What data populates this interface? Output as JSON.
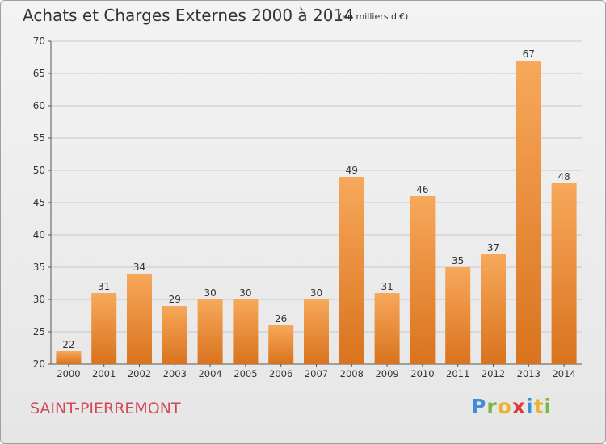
{
  "header": {
    "title": "Achats et Charges Externes 2000 à 2014",
    "subtitle": "(en milliers d'€)"
  },
  "footer": {
    "commune": "SAINT-PIERREMONT",
    "logo_letters": [
      "P",
      "r",
      "o",
      "x",
      "i",
      "t",
      "i"
    ],
    "logo_colors": [
      "#3f8fd6",
      "#7ab648",
      "#e8b22a",
      "#e03a3a",
      "#3f8fd6",
      "#e8b22a",
      "#7ab648"
    ]
  },
  "colors": {
    "bar_light": "#f7a85a",
    "bar_dark": "#d9731e",
    "grid": "#c8c8c8"
  },
  "chart_data": {
    "type": "bar",
    "title": "Achats et Charges Externes 2000 à 2014",
    "subtitle": "(en milliers d'€)",
    "categories": [
      "2000",
      "2001",
      "2002",
      "2003",
      "2004",
      "2005",
      "2006",
      "2007",
      "2008",
      "2009",
      "2010",
      "2011",
      "2012",
      "2013",
      "2014"
    ],
    "values": [
      22,
      31,
      34,
      29,
      30,
      30,
      26,
      30,
      49,
      31,
      46,
      35,
      37,
      67,
      48
    ],
    "ylim": [
      20,
      70
    ],
    "yticks": [
      20,
      25,
      30,
      35,
      40,
      45,
      50,
      55,
      60,
      65,
      70
    ],
    "grid": true,
    "legend": "none"
  }
}
